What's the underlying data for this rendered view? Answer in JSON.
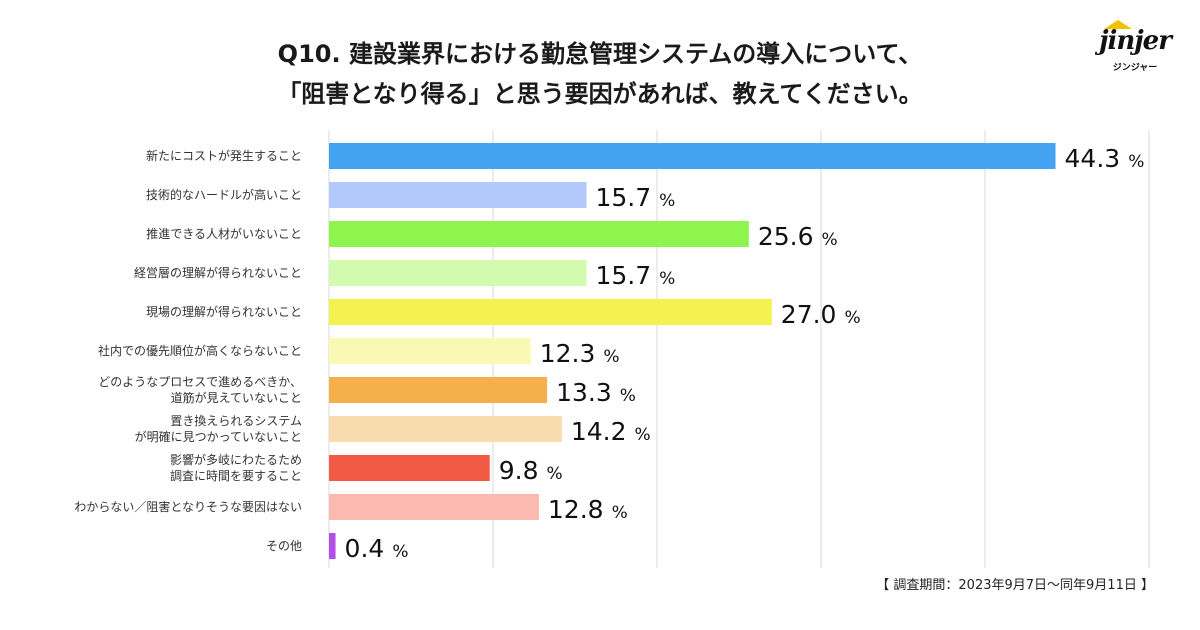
{
  "logo": {
    "name": "jinjer",
    "sub": "ジンジャー"
  },
  "footnote": "【 調査期間：2023年9月7日〜同年9月11日 】",
  "chart_data": {
    "type": "bar",
    "orientation": "horizontal",
    "title": [
      "Q10. 建設業界における勤怠管理システムの導入について、",
      "「阻害となり得る」と思う要因があれば、教えてください。"
    ],
    "unit": "%",
    "xlim": [
      0,
      50
    ],
    "grid": true,
    "categories": [
      [
        "新たにコストが発生すること"
      ],
      [
        "技術的なハードルが高いこと"
      ],
      [
        "推進できる人材がいないこと"
      ],
      [
        "経営層の理解が得られないこと"
      ],
      [
        "現場の理解が得られないこと"
      ],
      [
        "社内での優先順位が高くならないこと"
      ],
      [
        "どのようなプロセスで進めるべきか、",
        "道筋が見えていないこと"
      ],
      [
        "置き換えられるシステム",
        "が明確に見つかっていないこと"
      ],
      [
        "影響が多岐にわたるため",
        "調査に時間を要すること"
      ],
      [
        "わからない／阻害となりそうな要因はない"
      ],
      [
        "その他"
      ]
    ],
    "values": [
      44.3,
      15.7,
      25.6,
      15.7,
      27.0,
      12.3,
      13.3,
      14.2,
      9.8,
      12.8,
      0.4
    ],
    "value_labels": [
      "44.3",
      "15.7",
      "25.6",
      "15.7",
      "27.0",
      "12.3",
      "13.3",
      "14.2",
      "9.8",
      "12.8",
      "0.4"
    ],
    "colors": [
      "#43a3f2",
      "#b3c9fb",
      "#8ef54e",
      "#d2fbb0",
      "#f4f24e",
      "#f9f9b4",
      "#f5b04b",
      "#f9dbb0",
      "#f35a45",
      "#fbb9b0",
      "#b24fe8"
    ]
  }
}
